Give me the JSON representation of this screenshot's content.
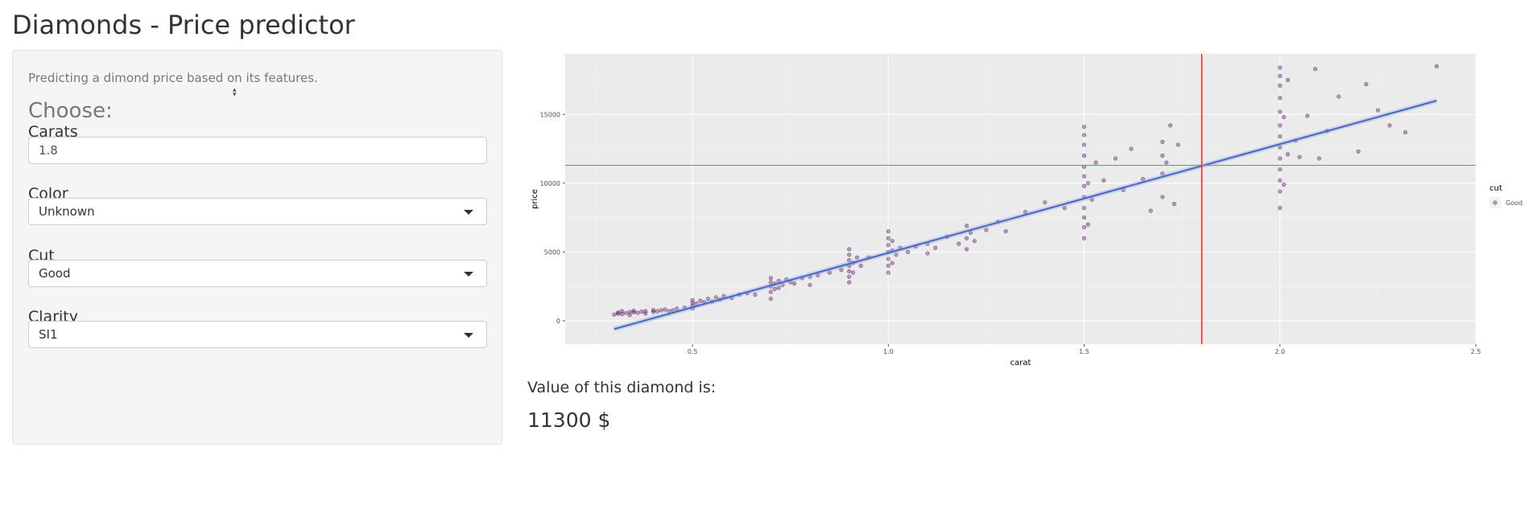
{
  "page": {
    "title": "Diamonds - Price predictor"
  },
  "sidebar": {
    "intro": "Predicting a dimond price based on its features.",
    "choose_heading": "Choose:",
    "carats": {
      "label": "Carats",
      "value": "1.8"
    },
    "color": {
      "label": "Color",
      "selected": "Unknown"
    },
    "cut": {
      "label": "Cut",
      "selected": "Good"
    },
    "clarity": {
      "label": "Clarity",
      "selected": "SI1"
    }
  },
  "result": {
    "label": "Value of this diamond is:",
    "value": "11300",
    "currency": "$"
  },
  "chart_data": {
    "type": "scatter",
    "xlabel": "carat",
    "ylabel": "price",
    "xlim": [
      0.175,
      2.5
    ],
    "ylim": [
      -1700,
      19400
    ],
    "xticks": [
      0.5,
      1.0,
      1.5,
      2.0,
      2.5
    ],
    "xtick_labels": [
      "0.5",
      "1.0",
      "1.5",
      "2.0",
      "2.5"
    ],
    "yticks": [
      0,
      5000,
      10000,
      15000
    ],
    "ytick_labels": [
      "0",
      "5000",
      "10000",
      "15000"
    ],
    "grid": true,
    "legend": {
      "title": "cut",
      "entries": [
        "Good"
      ],
      "placement": "right"
    },
    "point_color": "#440154",
    "fit_line": {
      "x": [
        0.3,
        2.4
      ],
      "y": [
        -600,
        16000
      ],
      "color": "#3366ff"
    },
    "vline": {
      "x": 1.8,
      "color": "#e41a1c"
    },
    "hline": {
      "y": 11300,
      "color": "#33cc33"
    },
    "series": [
      {
        "name": "Good",
        "points": [
          [
            0.3,
            450
          ],
          [
            0.31,
            520
          ],
          [
            0.31,
            600
          ],
          [
            0.32,
            480
          ],
          [
            0.32,
            700
          ],
          [
            0.33,
            560
          ],
          [
            0.34,
            650
          ],
          [
            0.34,
            420
          ],
          [
            0.35,
            620
          ],
          [
            0.35,
            720
          ],
          [
            0.36,
            580
          ],
          [
            0.37,
            660
          ],
          [
            0.38,
            700
          ],
          [
            0.38,
            520
          ],
          [
            0.4,
            640
          ],
          [
            0.4,
            780
          ],
          [
            0.41,
            690
          ],
          [
            0.42,
            760
          ],
          [
            0.43,
            820
          ],
          [
            0.44,
            700
          ],
          [
            0.45,
            760
          ],
          [
            0.46,
            880
          ],
          [
            0.48,
            950
          ],
          [
            0.5,
            1100
          ],
          [
            0.5,
            1300
          ],
          [
            0.5,
            1500
          ],
          [
            0.5,
            900
          ],
          [
            0.51,
            1250
          ],
          [
            0.52,
            1450
          ],
          [
            0.53,
            1350
          ],
          [
            0.54,
            1600
          ],
          [
            0.55,
            1400
          ],
          [
            0.56,
            1700
          ],
          [
            0.57,
            1550
          ],
          [
            0.58,
            1800
          ],
          [
            0.6,
            1650
          ],
          [
            0.62,
            1900
          ],
          [
            0.64,
            2000
          ],
          [
            0.66,
            1900
          ],
          [
            0.7,
            1600
          ],
          [
            0.7,
            2100
          ],
          [
            0.7,
            2500
          ],
          [
            0.7,
            2800
          ],
          [
            0.7,
            3100
          ],
          [
            0.71,
            2300
          ],
          [
            0.71,
            2700
          ],
          [
            0.72,
            2400
          ],
          [
            0.72,
            2900
          ],
          [
            0.73,
            2600
          ],
          [
            0.74,
            3000
          ],
          [
            0.75,
            2800
          ],
          [
            0.76,
            2700
          ],
          [
            0.78,
            3100
          ],
          [
            0.8,
            3200
          ],
          [
            0.8,
            2600
          ],
          [
            0.82,
            3300
          ],
          [
            0.85,
            3500
          ],
          [
            0.88,
            3700
          ],
          [
            0.9,
            2800
          ],
          [
            0.9,
            3200
          ],
          [
            0.9,
            3600
          ],
          [
            0.9,
            4000
          ],
          [
            0.9,
            4400
          ],
          [
            0.9,
            4800
          ],
          [
            0.9,
            5200
          ],
          [
            0.91,
            3500
          ],
          [
            0.91,
            4200
          ],
          [
            0.92,
            4600
          ],
          [
            0.93,
            4000
          ],
          [
            0.95,
            4600
          ],
          [
            1.0,
            3500
          ],
          [
            1.0,
            4000
          ],
          [
            1.0,
            4500
          ],
          [
            1.0,
            5000
          ],
          [
            1.0,
            5500
          ],
          [
            1.0,
            6000
          ],
          [
            1.0,
            6500
          ],
          [
            1.01,
            4200
          ],
          [
            1.01,
            5100
          ],
          [
            1.01,
            5800
          ],
          [
            1.02,
            4800
          ],
          [
            1.03,
            5300
          ],
          [
            1.05,
            5000
          ],
          [
            1.07,
            5400
          ],
          [
            1.1,
            4900
          ],
          [
            1.1,
            5600
          ],
          [
            1.12,
            5300
          ],
          [
            1.15,
            6100
          ],
          [
            1.18,
            5600
          ],
          [
            1.2,
            5200
          ],
          [
            1.2,
            6000
          ],
          [
            1.2,
            6900
          ],
          [
            1.21,
            6400
          ],
          [
            1.22,
            5800
          ],
          [
            1.25,
            6600
          ],
          [
            1.28,
            7200
          ],
          [
            1.3,
            6500
          ],
          [
            1.35,
            7900
          ],
          [
            1.4,
            8600
          ],
          [
            1.45,
            8200
          ],
          [
            1.5,
            6000
          ],
          [
            1.5,
            6800
          ],
          [
            1.5,
            7500
          ],
          [
            1.5,
            8200
          ],
          [
            1.5,
            9000
          ],
          [
            1.5,
            9800
          ],
          [
            1.5,
            10500
          ],
          [
            1.5,
            11200
          ],
          [
            1.5,
            12000
          ],
          [
            1.5,
            12800
          ],
          [
            1.5,
            13500
          ],
          [
            1.5,
            14100
          ],
          [
            1.51,
            7000
          ],
          [
            1.51,
            10000
          ],
          [
            1.52,
            8800
          ],
          [
            1.53,
            11500
          ],
          [
            1.55,
            10200
          ],
          [
            1.58,
            11800
          ],
          [
            1.6,
            9500
          ],
          [
            1.62,
            12500
          ],
          [
            1.65,
            10300
          ],
          [
            1.67,
            8000
          ],
          [
            1.7,
            10700
          ],
          [
            1.7,
            12000
          ],
          [
            1.7,
            13000
          ],
          [
            1.7,
            9000
          ],
          [
            1.71,
            11500
          ],
          [
            1.72,
            14200
          ],
          [
            1.73,
            8500
          ],
          [
            1.74,
            12800
          ],
          [
            2.0,
            8200
          ],
          [
            2.0,
            9400
          ],
          [
            2.0,
            10200
          ],
          [
            2.0,
            11000
          ],
          [
            2.0,
            11800
          ],
          [
            2.0,
            12600
          ],
          [
            2.0,
            13400
          ],
          [
            2.0,
            14200
          ],
          [
            2.0,
            15200
          ],
          [
            2.0,
            16200
          ],
          [
            2.0,
            17100
          ],
          [
            2.0,
            17800
          ],
          [
            2.0,
            18400
          ],
          [
            2.01,
            9900
          ],
          [
            2.01,
            14800
          ],
          [
            2.02,
            12100
          ],
          [
            2.02,
            17500
          ],
          [
            2.04,
            13100
          ],
          [
            2.05,
            11900
          ],
          [
            2.07,
            14900
          ],
          [
            2.09,
            18300
          ],
          [
            2.1,
            11800
          ],
          [
            2.12,
            13800
          ],
          [
            2.15,
            16300
          ],
          [
            2.2,
            12300
          ],
          [
            2.22,
            17200
          ],
          [
            2.25,
            15300
          ],
          [
            2.28,
            14200
          ],
          [
            2.32,
            13700
          ],
          [
            2.4,
            18500
          ]
        ]
      }
    ]
  }
}
